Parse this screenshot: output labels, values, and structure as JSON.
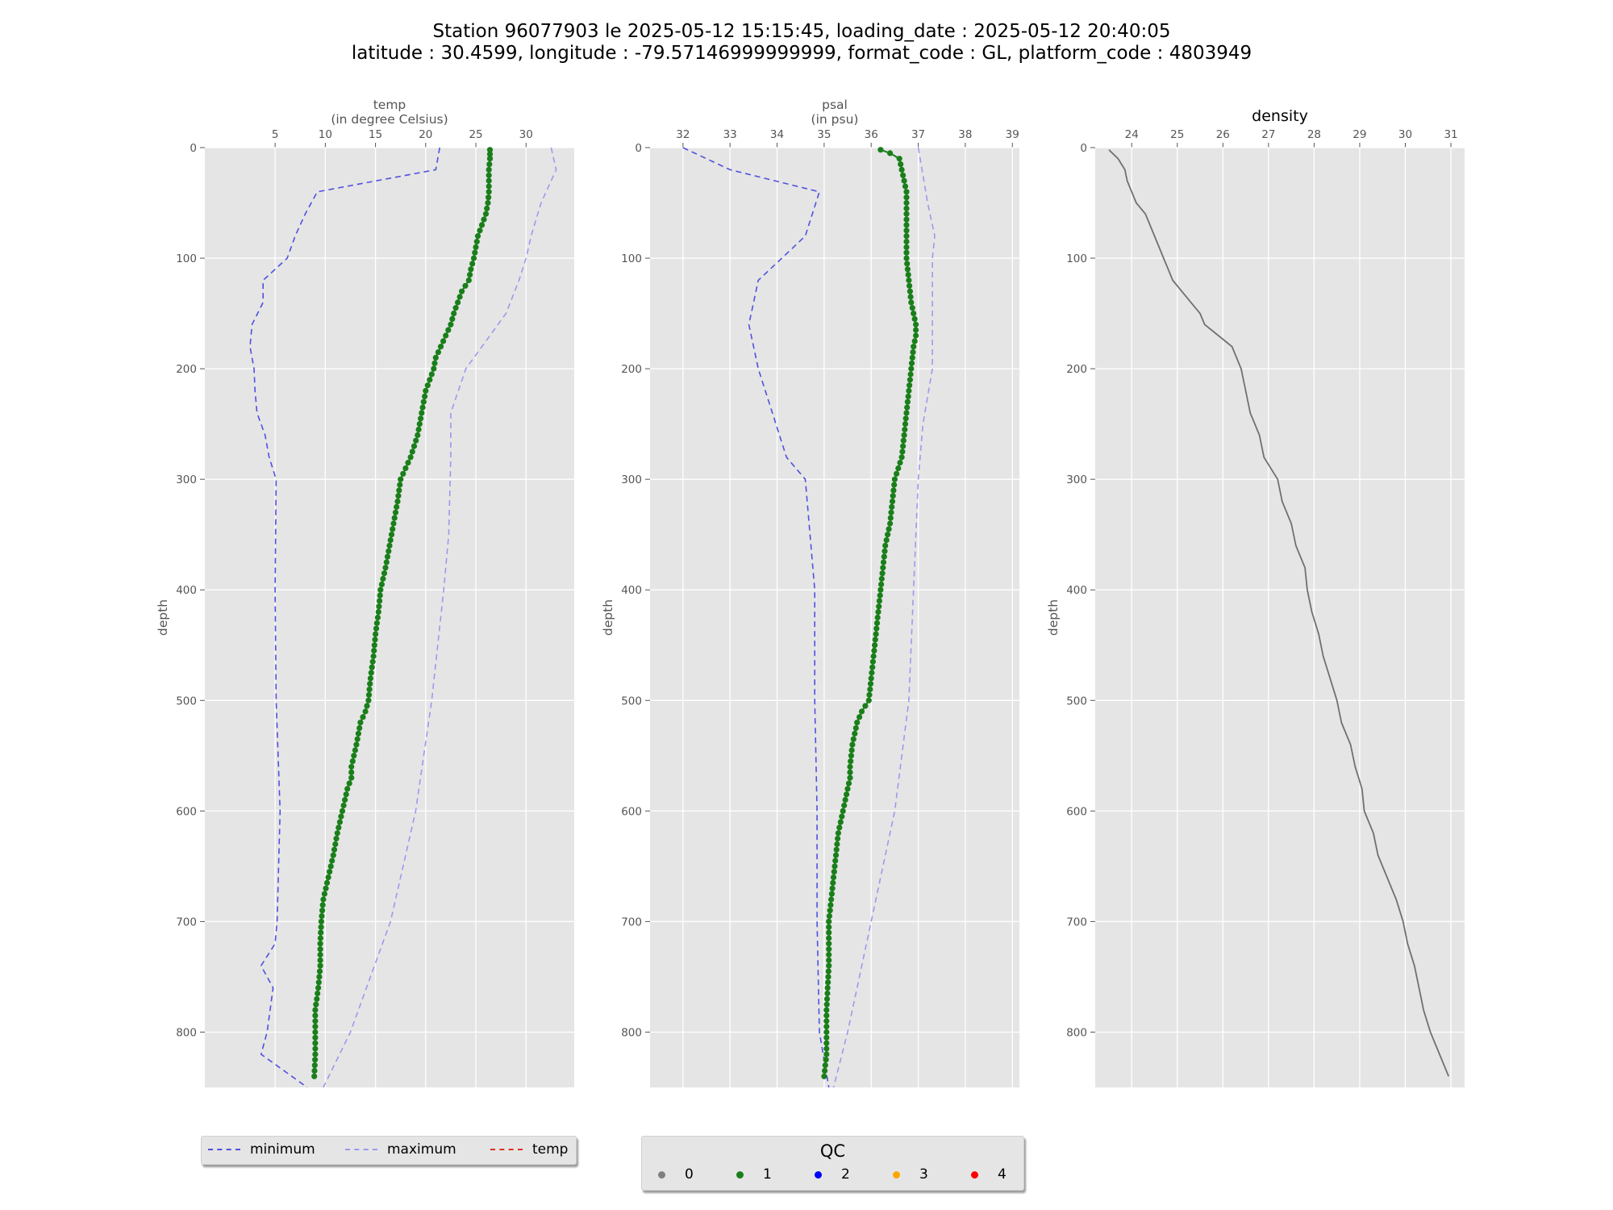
{
  "title_line1": "Station 96077903 le 2025-05-12 15:15:45, loading_date : 2025-05-12 20:40:05",
  "title_line2": "latitude : 30.4599, longitude : -79.57146999999999, format_code : GL, platform_code : 4803949",
  "colors": {
    "minimum": "#5050e0",
    "maximum": "#9a9aee",
    "temp": "#e03020",
    "qc0": "#808080",
    "qc1": "#1a7f1a",
    "qc2": "#0000ff",
    "qc3": "#ffa500",
    "qc4": "#ff0000",
    "density": "#707070",
    "panel_bg": "#e5e5e5"
  },
  "legend_lines": [
    {
      "label": "minimum",
      "style": "dashed"
    },
    {
      "label": "maximum",
      "style": "dashed"
    },
    {
      "label": "temp",
      "style": "dashdot"
    }
  ],
  "legend_qc": {
    "title": "QC",
    "items": [
      "0",
      "1",
      "2",
      "3",
      "4"
    ]
  },
  "chart_data": [
    {
      "type": "line",
      "xlabel_line1": "temp",
      "xlabel_line2": "(in degree Celsius)",
      "ylabel": "depth",
      "xlim": [
        -2,
        34.8
      ],
      "ylim": [
        850,
        0
      ],
      "xticks": [
        5,
        10,
        15,
        20,
        25,
        30
      ],
      "yticks": [
        0,
        100,
        200,
        300,
        400,
        500,
        600,
        700,
        800
      ],
      "grid": true,
      "series": [
        {
          "name": "minimum",
          "depth": [
            0,
            20,
            40,
            60,
            80,
            100,
            120,
            140,
            160,
            180,
            200,
            220,
            240,
            260,
            280,
            300,
            400,
            500,
            600,
            700,
            720,
            740,
            760,
            800,
            820,
            850
          ],
          "values": [
            21.4,
            21.0,
            9.2,
            8.0,
            7.0,
            6.2,
            3.8,
            3.8,
            2.7,
            2.5,
            2.9,
            3.0,
            3.2,
            4.0,
            4.4,
            5.1,
            5.0,
            5.1,
            5.5,
            5.2,
            5.0,
            3.6,
            4.8,
            4.2,
            3.6,
            8.2
          ]
        },
        {
          "name": "maximum",
          "depth": [
            0,
            20,
            50,
            80,
            100,
            120,
            150,
            200,
            240,
            280,
            350,
            400,
            500,
            600,
            700,
            800,
            850
          ],
          "values": [
            32.5,
            33.0,
            31.5,
            30.5,
            30.0,
            29.3,
            28.0,
            24.0,
            22.5,
            22.5,
            22.3,
            21.8,
            20.6,
            19.0,
            16.5,
            12.5,
            9.8
          ]
        },
        {
          "name": "temp",
          "qc": 1,
          "depth": [
            2,
            10,
            20,
            30,
            40,
            50,
            60,
            70,
            80,
            90,
            100,
            110,
            120,
            130,
            140,
            150,
            160,
            170,
            180,
            190,
            200,
            220,
            240,
            260,
            280,
            300,
            320,
            340,
            360,
            380,
            400,
            420,
            440,
            460,
            480,
            500,
            510,
            520,
            540,
            560,
            570,
            580,
            600,
            620,
            640,
            660,
            680,
            700,
            720,
            740,
            760,
            780,
            800,
            820,
            840
          ],
          "values": [
            26.4,
            26.4,
            26.3,
            26.3,
            26.3,
            26.2,
            26.0,
            25.6,
            25.2,
            25.0,
            24.8,
            24.5,
            24.3,
            23.6,
            23.2,
            22.8,
            22.5,
            22.0,
            21.5,
            21.0,
            20.8,
            20.0,
            19.6,
            19.2,
            18.5,
            17.5,
            17.2,
            16.8,
            16.4,
            16.0,
            15.5,
            15.3,
            15.0,
            14.8,
            14.5,
            14.3,
            14.0,
            13.5,
            13.1,
            12.6,
            12.6,
            12.2,
            11.7,
            11.2,
            10.8,
            10.3,
            9.8,
            9.6,
            9.5,
            9.5,
            9.3,
            9.0,
            9.0,
            9.0,
            8.9
          ]
        }
      ]
    },
    {
      "type": "line",
      "xlabel_line1": "psal",
      "xlabel_line2": "(in psu)",
      "ylabel": "depth",
      "xlim": [
        31.3,
        39.15
      ],
      "ylim": [
        850,
        0
      ],
      "xticks": [
        32,
        33,
        34,
        35,
        36,
        37,
        38,
        39
      ],
      "yticks": [
        0,
        100,
        200,
        300,
        400,
        500,
        600,
        700,
        800
      ],
      "grid": true,
      "series": [
        {
          "name": "minimum",
          "depth": [
            0,
            20,
            40,
            80,
            100,
            120,
            140,
            160,
            180,
            200,
            240,
            280,
            300,
            400,
            500,
            600,
            700,
            800,
            850
          ],
          "values": [
            32.0,
            33.0,
            34.9,
            34.6,
            34.1,
            33.6,
            33.5,
            33.4,
            33.5,
            33.6,
            33.9,
            34.2,
            34.6,
            34.8,
            34.8,
            34.85,
            34.85,
            34.9,
            35.1
          ]
        },
        {
          "name": "maximum",
          "depth": [
            0,
            50,
            80,
            100,
            150,
            200,
            250,
            300,
            400,
            500,
            600,
            700,
            800,
            850
          ],
          "values": [
            37.0,
            37.2,
            37.35,
            37.3,
            37.3,
            37.3,
            37.1,
            37.0,
            36.9,
            36.8,
            36.5,
            36.0,
            35.5,
            35.2
          ]
        },
        {
          "name": "psal",
          "qc": 1,
          "depth": [
            2,
            5,
            10,
            20,
            30,
            40,
            50,
            60,
            80,
            100,
            120,
            140,
            160,
            170,
            180,
            200,
            220,
            240,
            260,
            280,
            300,
            320,
            340,
            360,
            380,
            400,
            420,
            440,
            460,
            480,
            500,
            510,
            520,
            540,
            560,
            570,
            580,
            600,
            620,
            640,
            660,
            680,
            700,
            740,
            780,
            820,
            840
          ],
          "values": [
            36.2,
            36.4,
            36.6,
            36.65,
            36.7,
            36.75,
            36.75,
            36.75,
            36.75,
            36.75,
            36.8,
            36.85,
            36.95,
            36.95,
            36.9,
            36.85,
            36.8,
            36.75,
            36.7,
            36.65,
            36.5,
            36.45,
            36.4,
            36.3,
            36.25,
            36.2,
            36.15,
            36.1,
            36.05,
            36.0,
            35.95,
            35.8,
            35.7,
            35.6,
            35.55,
            35.55,
            35.5,
            35.4,
            35.3,
            35.25,
            35.2,
            35.15,
            35.1,
            35.1,
            35.05,
            35.05,
            35.0
          ]
        }
      ]
    },
    {
      "type": "line",
      "title": "density",
      "ylabel": "depth",
      "xlim": [
        23.2,
        31.3
      ],
      "ylim": [
        850,
        0
      ],
      "xticks": [
        24,
        25,
        26,
        27,
        28,
        29,
        30,
        31
      ],
      "yticks": [
        0,
        100,
        200,
        300,
        400,
        500,
        600,
        700,
        800
      ],
      "grid": true,
      "series": [
        {
          "name": "density",
          "depth": [
            2,
            10,
            20,
            30,
            40,
            50,
            60,
            70,
            80,
            90,
            100,
            110,
            120,
            130,
            140,
            150,
            160,
            170,
            180,
            200,
            220,
            240,
            260,
            280,
            300,
            320,
            340,
            360,
            380,
            400,
            420,
            440,
            460,
            480,
            500,
            520,
            540,
            560,
            580,
            600,
            620,
            640,
            660,
            680,
            700,
            720,
            740,
            760,
            780,
            800,
            820,
            840
          ],
          "values": [
            23.5,
            23.7,
            23.85,
            23.9,
            24.0,
            24.1,
            24.3,
            24.4,
            24.5,
            24.6,
            24.7,
            24.8,
            24.9,
            25.1,
            25.3,
            25.5,
            25.6,
            25.9,
            26.2,
            26.4,
            26.5,
            26.6,
            26.8,
            26.9,
            27.2,
            27.3,
            27.5,
            27.6,
            27.8,
            27.85,
            27.95,
            28.1,
            28.2,
            28.35,
            28.5,
            28.6,
            28.8,
            28.9,
            29.05,
            29.1,
            29.3,
            29.4,
            29.6,
            29.8,
            29.95,
            30.05,
            30.2,
            30.3,
            30.4,
            30.55,
            30.75,
            30.95
          ]
        }
      ]
    }
  ]
}
